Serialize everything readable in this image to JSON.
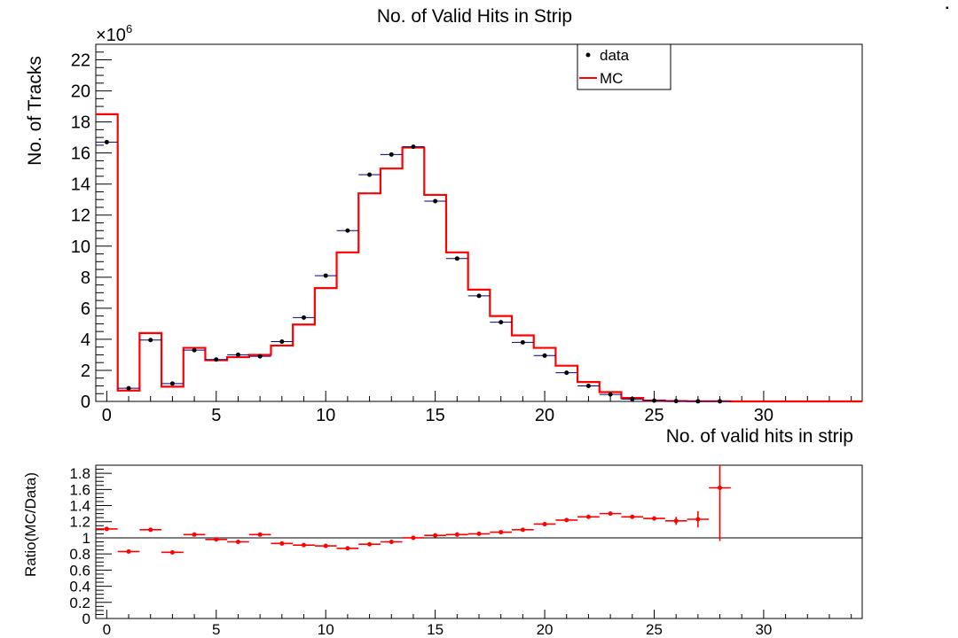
{
  "page": {
    "corner_mark": "▪"
  },
  "chart_data": [
    {
      "type": "histogram",
      "title": "No. of Valid Hits in Strip",
      "xlabel": "No. of valid hits in strip",
      "ylabel": "No. of Tracks",
      "y_exponent_label": "×10",
      "y_exponent_power": "6",
      "xlim": [
        -0.5,
        34.5
      ],
      "ylim": [
        0,
        23
      ],
      "x_ticks": [
        0,
        5,
        10,
        15,
        20,
        25,
        30
      ],
      "x_tick_labels": [
        "0",
        "5",
        "10",
        "15",
        "20",
        "25",
        "30"
      ],
      "y_ticks": [
        0,
        2,
        4,
        6,
        8,
        10,
        12,
        14,
        16,
        18,
        20,
        22
      ],
      "y_tick_labels": [
        "0",
        "2",
        "4",
        "6",
        "8",
        "10",
        "12",
        "14",
        "16",
        "18",
        "20",
        "22"
      ],
      "legend_position": "top-right",
      "legend": [
        {
          "label": "data",
          "style": "marker",
          "color": "#000000"
        },
        {
          "label": "MC",
          "style": "line",
          "color": "#ff0000"
        }
      ],
      "series": [
        {
          "name": "data",
          "style": "points",
          "color": "#000000",
          "x": [
            0,
            1,
            2,
            3,
            4,
            5,
            6,
            7,
            8,
            9,
            10,
            11,
            12,
            13,
            14,
            15,
            16,
            17,
            18,
            19,
            20,
            21,
            22,
            23,
            24,
            25,
            26,
            27,
            28
          ],
          "values": [
            16.7,
            0.85,
            3.95,
            1.15,
            3.3,
            2.7,
            3.0,
            2.9,
            3.85,
            5.4,
            8.1,
            11.0,
            14.6,
            15.9,
            16.4,
            12.9,
            9.2,
            6.8,
            5.1,
            3.8,
            2.95,
            1.85,
            1.0,
            0.45,
            0.15,
            0.05,
            0.02,
            0.01,
            0.005
          ]
        },
        {
          "name": "MC",
          "style": "step",
          "color": "#ff0000",
          "x": [
            0,
            1,
            2,
            3,
            4,
            5,
            6,
            7,
            8,
            9,
            10,
            11,
            12,
            13,
            14,
            15,
            16,
            17,
            18,
            19,
            20,
            21,
            22,
            23,
            24,
            25,
            26,
            27,
            28,
            29,
            30,
            31,
            32,
            33,
            34
          ],
          "values": [
            18.5,
            0.7,
            4.4,
            0.95,
            3.45,
            2.65,
            2.85,
            3.0,
            3.6,
            4.95,
            7.3,
            9.6,
            13.4,
            15.0,
            16.35,
            13.3,
            9.6,
            7.2,
            5.5,
            4.25,
            3.45,
            2.3,
            1.25,
            0.6,
            0.22,
            0.05,
            0.02,
            0.01,
            0.01,
            0,
            0,
            0,
            0,
            0,
            0
          ]
        }
      ]
    },
    {
      "type": "scatter",
      "xlabel": "",
      "ylabel": "Ratio(MC/Data)",
      "xlim": [
        -0.5,
        34.5
      ],
      "ylim": [
        0,
        1.9
      ],
      "x_ticks": [
        0,
        5,
        10,
        15,
        20,
        25,
        30
      ],
      "x_tick_labels": [
        "0",
        "5",
        "10",
        "15",
        "20",
        "25",
        "30"
      ],
      "y_ticks": [
        0,
        0.2,
        0.4,
        0.6,
        0.8,
        1,
        1.2,
        1.4,
        1.6,
        1.8
      ],
      "y_tick_labels": [
        "0",
        "0.2",
        "0.4",
        "0.6",
        "0.8",
        "1",
        "1.2",
        "1.4",
        "1.6",
        "1.8"
      ],
      "reference_line": 1,
      "series": [
        {
          "name": "",
          "color": "#ff0000",
          "x": [
            0,
            1,
            2,
            3,
            4,
            5,
            6,
            7,
            8,
            9,
            10,
            11,
            12,
            13,
            14,
            15,
            16,
            17,
            18,
            19,
            20,
            21,
            22,
            23,
            24,
            25,
            26,
            27,
            28
          ],
          "values": [
            1.11,
            0.83,
            1.1,
            0.82,
            1.04,
            0.98,
            0.95,
            1.04,
            0.93,
            0.91,
            0.9,
            0.87,
            0.92,
            0.95,
            1.0,
            1.03,
            1.04,
            1.05,
            1.07,
            1.1,
            1.17,
            1.22,
            1.26,
            1.3,
            1.26,
            1.24,
            1.21,
            1.23,
            1.62
          ],
          "errors": [
            0,
            0,
            0,
            0,
            0,
            0,
            0,
            0,
            0,
            0,
            0,
            0,
            0,
            0,
            0,
            0,
            0,
            0,
            0,
            0,
            0,
            0,
            0,
            0,
            0,
            0.02,
            0.05,
            0.1,
            0.66
          ]
        }
      ]
    }
  ]
}
